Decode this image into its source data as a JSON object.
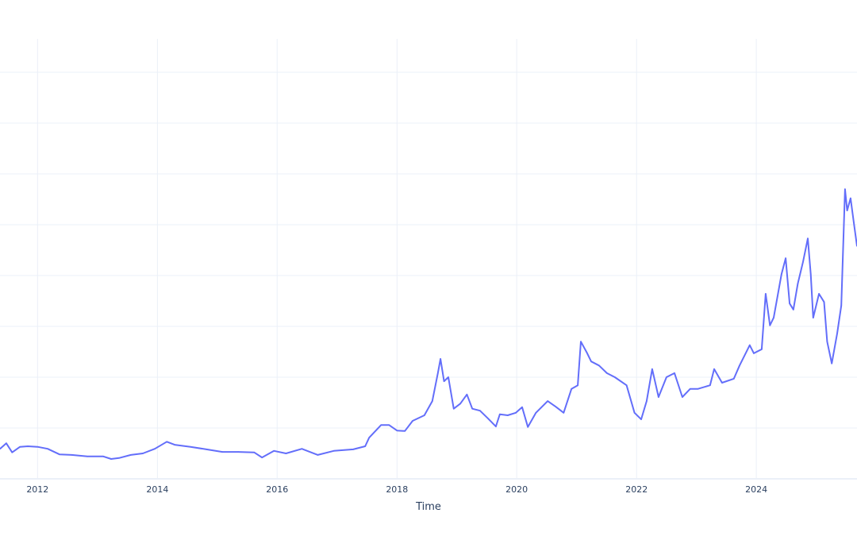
{
  "chart_data": {
    "type": "line",
    "title": "",
    "xlabel": "Time",
    "ylabel": "",
    "xlim": [
      "2011-05-17",
      "2025-09-06"
    ],
    "ylim": [
      0,
      8.5
    ],
    "y_note_units": "unlabeled gridline units",
    "grid": true,
    "legend": "none",
    "line_color": "#636efa",
    "x_ticks": [
      "2012",
      "2014",
      "2016",
      "2018",
      "2020",
      "2022",
      "2024"
    ],
    "y_gridlines": [
      1,
      2,
      3,
      4,
      5,
      6,
      7,
      8
    ],
    "series": [
      {
        "x": [
          "2011-05-17",
          "2011-06-24",
          "2011-07-30",
          "2011-09-16",
          "2011-11-03",
          "2012-01-01",
          "2012-03-03",
          "2012-05-15",
          "2012-07-27",
          "2012-10-31",
          "2013-02-05",
          "2013-03-25",
          "2013-05-12",
          "2013-07-23",
          "2013-10-04",
          "2013-12-16",
          "2014-02-27",
          "2014-04-16",
          "2014-07-22",
          "2014-10-27",
          "2015-02-01",
          "2015-05-09",
          "2015-08-14",
          "2015-10-01",
          "2015-12-13",
          "2016-02-24",
          "2016-05-31",
          "2016-09-05",
          "2016-12-11",
          "2017-04-09",
          "2017-06-21",
          "2017-07-15",
          "2017-09-26",
          "2017-11-13",
          "2018-01-01",
          "2018-02-18",
          "2018-04-06",
          "2018-06-17",
          "2018-08-04",
          "2018-09-07",
          "2018-09-23",
          "2018-10-15",
          "2018-11-10",
          "2018-12-13",
          "2019-01-22",
          "2019-03-03",
          "2019-04-05",
          "2019-05-22",
          "2019-07-09",
          "2019-08-27",
          "2019-09-20",
          "2019-11-07",
          "2019-12-27",
          "2020-02-03",
          "2020-03-09",
          "2020-04-27",
          "2020-07-08",
          "2020-08-25",
          "2020-10-13",
          "2020-11-30",
          "2021-01-07",
          "2021-01-26",
          "2021-03-06",
          "2021-03-30",
          "2021-05-17",
          "2021-07-04",
          "2021-08-21",
          "2021-11-01",
          "2021-12-19",
          "2022-01-29",
          "2022-03-03",
          "2022-04-06",
          "2022-05-15",
          "2022-07-02",
          "2022-08-20",
          "2022-10-07",
          "2022-11-24",
          "2023-01-11",
          "2023-03-25",
          "2023-04-19",
          "2023-06-06",
          "2023-08-17",
          "2023-09-21",
          "2023-11-22",
          "2023-12-17",
          "2024-02-03",
          "2024-02-27",
          "2024-03-24",
          "2024-04-16",
          "2024-06-03",
          "2024-06-28",
          "2024-07-22",
          "2024-08-14",
          "2024-09-10",
          "2024-09-24",
          "2024-10-12",
          "2024-11-10",
          "2024-11-28",
          "2024-12-13",
          "2025-01-17",
          "2025-02-17",
          "2025-03-08",
          "2025-04-05",
          "2025-05-08",
          "2025-06-02",
          "2025-06-25",
          "2025-07-08",
          "2025-07-29",
          "2025-08-17",
          "2025-09-06"
        ],
        "y": [
          0.59,
          0.7,
          0.52,
          0.63,
          0.64,
          0.63,
          0.59,
          0.48,
          0.47,
          0.44,
          0.44,
          0.39,
          0.41,
          0.47,
          0.5,
          0.59,
          0.73,
          0.67,
          0.63,
          0.58,
          0.53,
          0.53,
          0.52,
          0.42,
          0.55,
          0.5,
          0.59,
          0.47,
          0.55,
          0.58,
          0.64,
          0.81,
          1.06,
          1.06,
          0.95,
          0.94,
          1.14,
          1.25,
          1.53,
          2.08,
          2.36,
          1.92,
          2.0,
          1.38,
          1.48,
          1.66,
          1.38,
          1.34,
          1.19,
          1.03,
          1.27,
          1.25,
          1.3,
          1.41,
          1.02,
          1.3,
          1.53,
          1.42,
          1.3,
          1.77,
          1.84,
          2.7,
          2.47,
          2.31,
          2.23,
          2.08,
          2.0,
          1.84,
          1.3,
          1.17,
          1.53,
          2.16,
          1.61,
          2.0,
          2.08,
          1.61,
          1.77,
          1.77,
          1.84,
          2.16,
          1.89,
          1.97,
          2.23,
          2.63,
          2.47,
          2.55,
          3.64,
          3.02,
          3.17,
          4.03,
          4.34,
          3.45,
          3.33,
          3.84,
          4.03,
          4.27,
          4.73,
          4.03,
          3.17,
          3.64,
          3.48,
          2.7,
          2.27,
          2.86,
          3.41,
          5.7,
          5.28,
          5.52,
          5.05,
          4.58
        ]
      }
    ]
  }
}
